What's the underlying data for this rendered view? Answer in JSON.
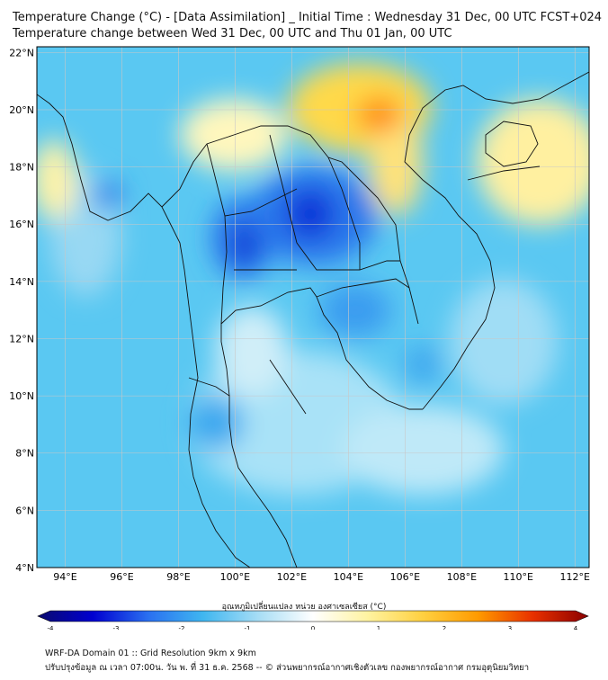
{
  "title_line1": "Temperature Change (°C) - [Data Assimilation] _ Initial Time : Wednesday 31 Dec, 00 UTC FCST+024",
  "title_line2": "Temperature change between Wed 31 Dec, 00 UTC and Thu 01 Jan, 00 UTC",
  "map": {
    "lon_range": [
      93,
      112.5
    ],
    "lat_range": [
      4,
      22.2
    ],
    "lon_ticks": [
      "94°E",
      "96°E",
      "98°E",
      "100°E",
      "102°E",
      "104°E",
      "106°E",
      "108°E",
      "110°E",
      "112°E"
    ],
    "lat_ticks": [
      "4°N",
      "6°N",
      "8°N",
      "10°N",
      "12°N",
      "14°N",
      "16°N",
      "18°N",
      "20°N",
      "22°N"
    ],
    "grid": true
  },
  "colorbar": {
    "label": "อุณหภูมิเปลี่ยนแปลง หน่วย องศาเซลเซียส (°C)",
    "ticks": [
      "-4",
      "-3",
      "-2",
      "-1",
      "0",
      "1",
      "2",
      "3",
      "4"
    ],
    "range": [
      -4,
      4
    ],
    "colors": [
      "#0a0a6e",
      "#0000d0",
      "#2a6ff0",
      "#3fb6f0",
      "#a6ddf5",
      "#ffffff",
      "#fff3a0",
      "#ffd040",
      "#ff9a00",
      "#e83000",
      "#8a0000"
    ]
  },
  "footer_line1": "WRF-DA Domain 01 :: Grid Resolution 9km x 9km",
  "footer_line2": "ปรับปรุงข้อมูล ณ เวลา 07:00น. วัน พ. ที่ 31 ธ.ค. 2568 -- © ส่วนพยากรณ์อากาศเชิงตัวเลข กองพยากรณ์อากาศ กรมอุตุนิยมวิทยา"
}
